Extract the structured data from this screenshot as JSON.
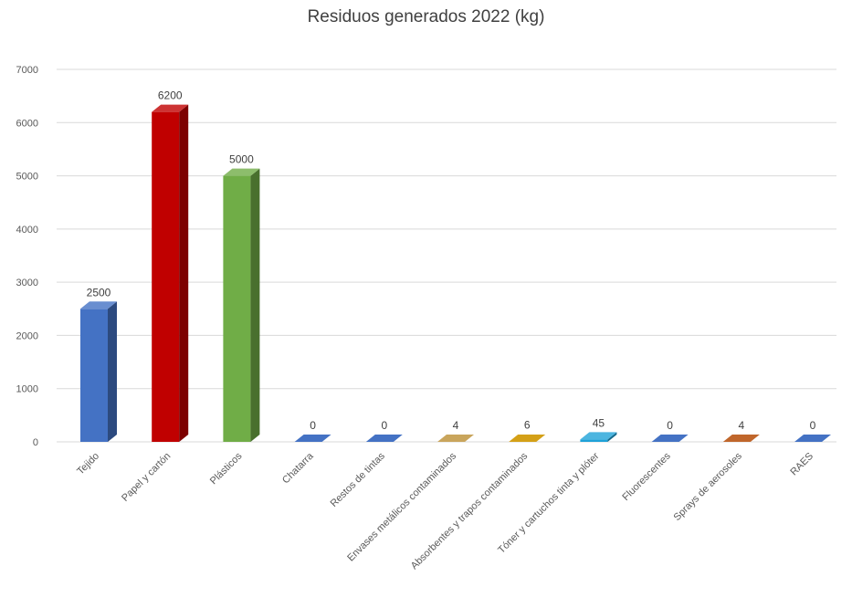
{
  "chart_data": {
    "type": "bar",
    "title": "Residuos generados 2022 (kg)",
    "categories": [
      "Tejido",
      "Papel y cartón",
      "Plásticos",
      "Chatarra",
      "Restos de tintas",
      "Envases metálicos contaminados",
      "Absorbentes y trapos contaminados",
      "Tóner y cartuchos tinta y plóter",
      "Fluorescentes",
      "Sprays de aerosoles",
      "RAES"
    ],
    "values": [
      2500,
      6200,
      5000,
      0,
      0,
      4,
      6,
      45,
      0,
      4,
      0
    ],
    "data_labels": [
      "2500",
      "6200",
      "5000",
      "0",
      "0",
      "4",
      "6",
      "45",
      "0",
      "4",
      "0"
    ],
    "colors": [
      "#4472c4",
      "#c00000",
      "#70ad47",
      "#4472c4",
      "#4472c4",
      "#c9a55c",
      "#d4a017",
      "#1fa2d8",
      "#4472c4",
      "#c0662b",
      "#4472c4"
    ],
    "ylim": [
      0,
      7000
    ],
    "yticks": [
      0,
      1000,
      2000,
      3000,
      4000,
      5000,
      6000,
      7000
    ],
    "grid": true,
    "legend": "none",
    "style": "3d-column"
  }
}
